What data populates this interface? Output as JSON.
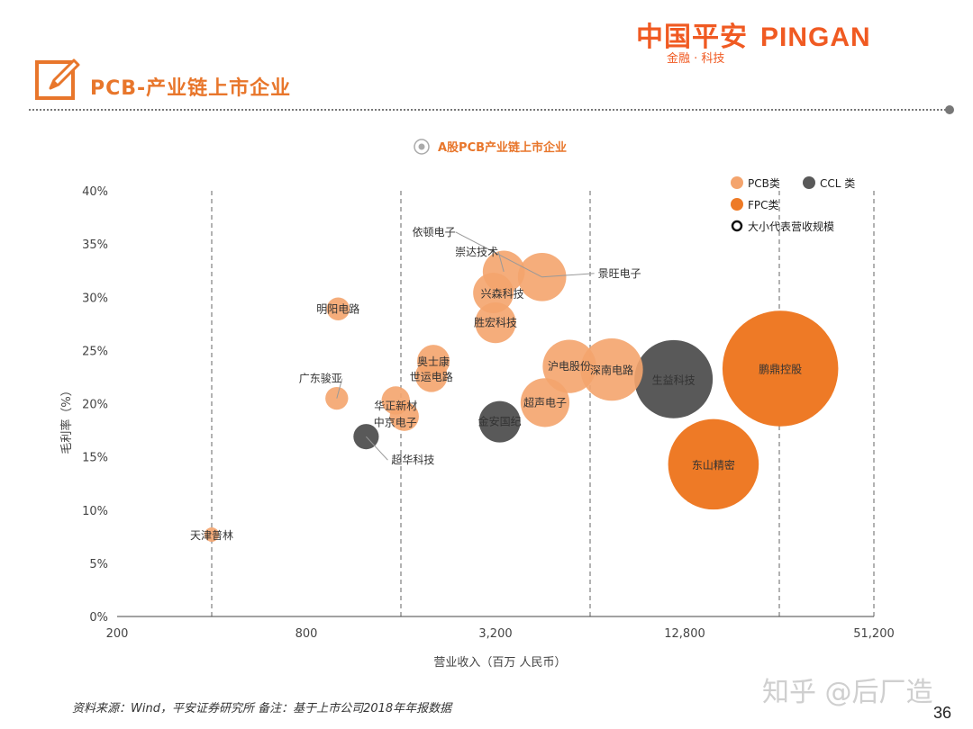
{
  "header": {
    "title": "PCB-产业链上市企业"
  },
  "logo": {
    "brand_cn": "中国平安",
    "brand_en": "PINGAN",
    "subtitle": "金融 · 科技"
  },
  "footer": {
    "source": "资料来源：Wind，平安证券研究所  备注：基于上市公司2018年年报数据",
    "page_number": "36",
    "watermark": "知乎 @后厂造"
  },
  "colors": {
    "pcb": "#f4a46d",
    "ccl": "#595959",
    "fpc": "#ee7a26",
    "accent": "#e8762b"
  },
  "chart_data": {
    "type": "scatter",
    "title": "A股PCB产业链上市企业",
    "xlabel": "营业收入（百万 人民币）",
    "ylabel": "毛利率（%）",
    "x_scale": "log",
    "xlim": [
      200,
      51200
    ],
    "ylim": [
      0,
      40
    ],
    "x_ticks": [
      "200",
      "800",
      "3,200",
      "12,800",
      "51,200"
    ],
    "y_ticks": [
      "0%",
      "5%",
      "10%",
      "15%",
      "20%",
      "25%",
      "30%",
      "35%",
      "40%"
    ],
    "grid": "vertical dashed reference lines",
    "legend": {
      "placement": "top-right",
      "entries": [
        {
          "label": "PCB类",
          "category": "pcb"
        },
        {
          "label": "CCL 类",
          "category": "ccl"
        },
        {
          "label": "FPC类",
          "category": "fpc"
        },
        {
          "label": "大小代表营收规模",
          "category": "size"
        }
      ]
    },
    "points": [
      {
        "name": "天津普林",
        "category": "pcb",
        "x": 400,
        "y": 7.7
      },
      {
        "name": "广东骏亚",
        "category": "pcb",
        "x": 1000,
        "y": 20.5
      },
      {
        "name": "明阳电路",
        "category": "pcb",
        "x": 1010,
        "y": 28.9
      },
      {
        "name": "超华科技",
        "category": "ccl",
        "x": 1240,
        "y": 16.9
      },
      {
        "name": "华正新材",
        "category": "pcb",
        "x": 1540,
        "y": 20.3
      },
      {
        "name": "中京电子",
        "category": "pcb",
        "x": 1640,
        "y": 18.8
      },
      {
        "name": "世运电路",
        "category": "pcb",
        "x": 2000,
        "y": 22.6
      },
      {
        "name": "奥士康",
        "category": "pcb",
        "x": 2030,
        "y": 24.0
      },
      {
        "name": "金安国纪",
        "category": "ccl",
        "x": 3300,
        "y": 18.3
      },
      {
        "name": "胜宏科技",
        "category": "pcb",
        "x": 3200,
        "y": 27.6
      },
      {
        "name": "兴森科技",
        "category": "pcb",
        "x": 3150,
        "y": 30.4
      },
      {
        "name": "崇达技术",
        "category": "pcb",
        "x": 3400,
        "y": 32.4
      },
      {
        "name": "依顿电子",
        "category": "pcb",
        "x": 4500,
        "y": 31.9
      },
      {
        "name": "景旺电子",
        "category": "pcb",
        "x": 4500,
        "y": 31.9
      },
      {
        "name": "超声电子",
        "category": "pcb",
        "x": 4600,
        "y": 20.1
      },
      {
        "name": "沪电股份",
        "category": "pcb",
        "x": 5500,
        "y": 23.5
      },
      {
        "name": "深南电路",
        "category": "pcb",
        "x": 7500,
        "y": 23.2
      },
      {
        "name": "生益科技",
        "category": "ccl",
        "x": 11800,
        "y": 22.3
      },
      {
        "name": "东山精密",
        "category": "fpc",
        "x": 15800,
        "y": 14.3
      },
      {
        "name": "鹏鼎控股",
        "category": "fpc",
        "x": 25800,
        "y": 23.3
      }
    ]
  }
}
